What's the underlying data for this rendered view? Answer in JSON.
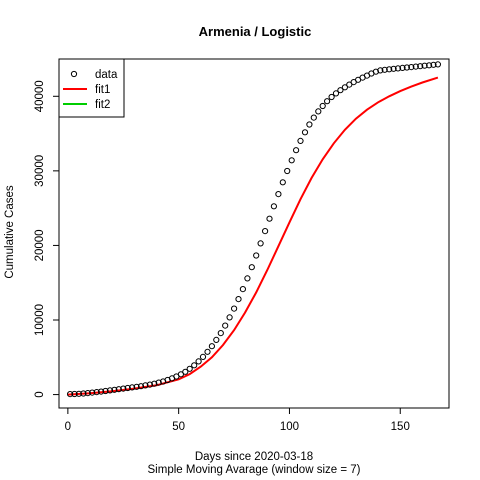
{
  "chart_data": {
    "type": "scatter",
    "title": "Armenia / Logistic",
    "xlabel": "Days since 2020-03-18",
    "subtitle": "Simple Moving Avarage (window size = 7)",
    "ylabel": "Cumulative Cases",
    "xlim": [
      -4,
      172
    ],
    "ylim": [
      -1800,
      45000
    ],
    "x_ticks": [
      0,
      50,
      100,
      150
    ],
    "y_ticks": [
      0,
      10000,
      20000,
      30000,
      40000
    ],
    "legend": {
      "position": "top-left",
      "entries": [
        {
          "label": "data",
          "symbol": "circle",
          "color": "#000000"
        },
        {
          "label": "fit1",
          "symbol": "line",
          "color": "#ff0000"
        },
        {
          "label": "fit2",
          "symbol": "line",
          "color": "#00cd00"
        }
      ]
    },
    "series": [
      {
        "name": "data",
        "kind": "points",
        "color": "#000000",
        "x": [
          1,
          3,
          5,
          7,
          9,
          11,
          13,
          15,
          17,
          19,
          21,
          23,
          25,
          27,
          29,
          31,
          33,
          35,
          37,
          39,
          41,
          43,
          45,
          47,
          49,
          51,
          53,
          55,
          57,
          59,
          61,
          63,
          65,
          67,
          69,
          71,
          73,
          75,
          77,
          79,
          81,
          83,
          85,
          87,
          89,
          91,
          93,
          95,
          97,
          99,
          101,
          103,
          105,
          107,
          109,
          111,
          113,
          115,
          117,
          119,
          121,
          123,
          125,
          127,
          129,
          131,
          133,
          135,
          137,
          139,
          141,
          143,
          145,
          147,
          149,
          151,
          153,
          155,
          157,
          159,
          161,
          163,
          165,
          167
        ],
        "y": [
          60,
          80,
          110,
          150,
          200,
          260,
          330,
          400,
          480,
          560,
          640,
          720,
          800,
          880,
          960,
          1040,
          1130,
          1230,
          1340,
          1460,
          1600,
          1760,
          1950,
          2170,
          2420,
          2720,
          3060,
          3460,
          3920,
          4450,
          5050,
          5730,
          6490,
          7330,
          8250,
          9250,
          10350,
          11530,
          12800,
          14150,
          15580,
          17080,
          18650,
          20270,
          21920,
          23590,
          25250,
          26880,
          28460,
          29980,
          31420,
          32770,
          34020,
          35170,
          36210,
          37140,
          37970,
          38700,
          39340,
          39900,
          40390,
          40820,
          41210,
          41570,
          41900,
          42210,
          42500,
          42770,
          43050,
          43300,
          43470,
          43550,
          43620,
          43680,
          43740,
          43800,
          43860,
          43920,
          43980,
          44040,
          44100,
          44160,
          44220,
          44280
        ]
      },
      {
        "name": "fit1",
        "kind": "line",
        "color": "#ff0000",
        "x": [
          0,
          10,
          20,
          30,
          40,
          50,
          55,
          60,
          65,
          70,
          75,
          80,
          85,
          90,
          95,
          100,
          105,
          110,
          115,
          120,
          125,
          130,
          135,
          140,
          145,
          150,
          155,
          160,
          167
        ],
        "y": [
          0,
          180,
          450,
          800,
          1250,
          2050,
          2750,
          3750,
          5000,
          6650,
          8650,
          11000,
          13700,
          16700,
          19900,
          23100,
          26200,
          29050,
          31550,
          33700,
          35500,
          37000,
          38200,
          39200,
          40000,
          40700,
          41300,
          41850,
          42500
        ]
      }
    ]
  }
}
